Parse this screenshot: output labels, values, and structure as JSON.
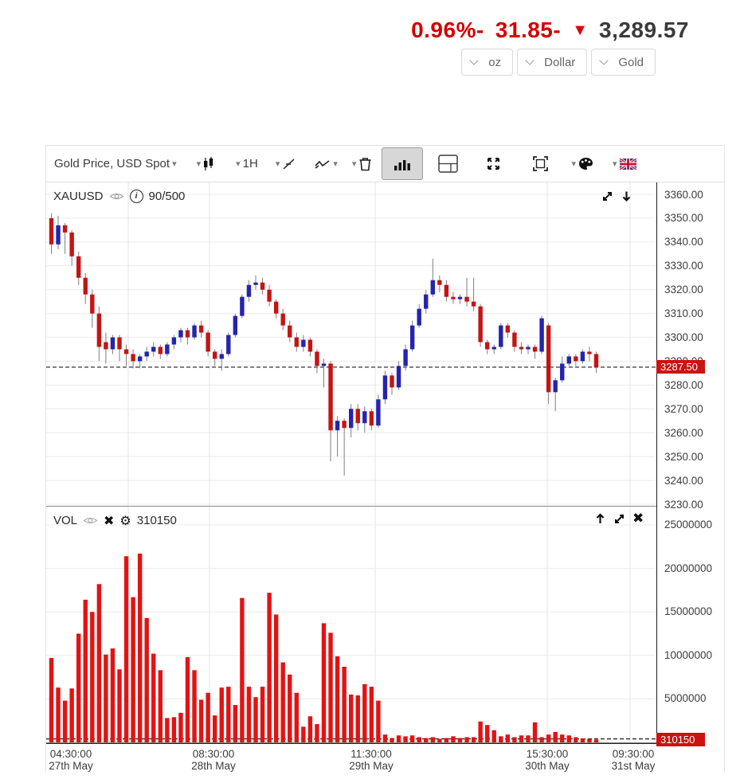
{
  "header": {
    "change_pct": "0.96%-",
    "change_abs": "31.85-",
    "price": "3,289.57",
    "units": [
      "oz",
      "Dollar",
      "Gold"
    ]
  },
  "toolbar": {
    "symbol": "Gold Price, USD Spot",
    "timeframe": "1H"
  },
  "price_pane": {
    "symbol": "XAUUSD",
    "bars_info": "90/500",
    "current": "3287.50"
  },
  "volume_pane": {
    "label": "VOL",
    "value": "310150",
    "current": "310150"
  },
  "chart_data": {
    "type": "candlestick_with_volume",
    "symbol": "XAUUSD",
    "timeframe": "1H",
    "colors": {
      "up": "#2424ad",
      "down": "#c41414",
      "wick": "#7f7f7f",
      "volume": "#e21313",
      "badge": "#cc1212",
      "grid": "#ececec",
      "session_grid": "#e4e4e4",
      "dashed": "#1c1c1c"
    },
    "price_axis": {
      "min": 3230,
      "max": 3360,
      "tick_step": 10,
      "current": 3287.5,
      "ticks": [
        3360,
        3350,
        3340,
        3330,
        3320,
        3310,
        3300,
        3290,
        3280,
        3270,
        3260,
        3250,
        3240,
        3230
      ]
    },
    "volume_axis": {
      "min": 0,
      "max": 25000000,
      "current": 310150,
      "ticks": [
        25000000,
        20000000,
        15000000,
        10000000,
        5000000,
        0
      ]
    },
    "x_ticks": [
      {
        "time": "04:30:00",
        "date": "27th May",
        "x": 31
      },
      {
        "time": "08:30:00",
        "date": "28th May",
        "x": 210
      },
      {
        "time": "11:30:00",
        "date": "29th May",
        "x": 408
      },
      {
        "time": "15:30:00",
        "date": "30th May",
        "x": 629
      },
      {
        "time": "09:30:00",
        "date": "31st May",
        "x": 737
      }
    ],
    "session_gridlines_x": [
      103,
      205,
      413,
      629,
      733
    ],
    "candles": [
      [
        3350,
        3352,
        3335,
        3339
      ],
      [
        3339,
        3351,
        3337,
        3347
      ],
      [
        3347,
        3348,
        3335,
        3344
      ],
      [
        3344,
        3345,
        3330,
        3334
      ],
      [
        3334,
        3336,
        3322,
        3325
      ],
      [
        3325,
        3327,
        3314,
        3318
      ],
      [
        3318,
        3320,
        3304,
        3310
      ],
      [
        3310,
        3313,
        3290,
        3296
      ],
      [
        3298,
        3302,
        3289,
        3295
      ],
      [
        3295,
        3301,
        3293,
        3300
      ],
      [
        3300,
        3301,
        3290,
        3295
      ],
      [
        3295,
        3297,
        3288,
        3293
      ],
      [
        3293,
        3295,
        3287,
        3290
      ],
      [
        3290,
        3293,
        3287,
        3292
      ],
      [
        3292,
        3296,
        3290,
        3294
      ],
      [
        3294,
        3298,
        3292,
        3296
      ],
      [
        3296,
        3297,
        3291,
        3293
      ],
      [
        3293,
        3298,
        3292,
        3297
      ],
      [
        3297,
        3301,
        3295,
        3300
      ],
      [
        3300,
        3304,
        3298,
        3303
      ],
      [
        3303,
        3304,
        3297,
        3300
      ],
      [
        3300,
        3306,
        3299,
        3305
      ],
      [
        3305,
        3307,
        3300,
        3302
      ],
      [
        3302,
        3303,
        3292,
        3294
      ],
      [
        3294,
        3295,
        3288,
        3291
      ],
      [
        3291,
        3295,
        3286,
        3293
      ],
      [
        3293,
        3302,
        3292,
        3301
      ],
      [
        3301,
        3310,
        3300,
        3309
      ],
      [
        3309,
        3318,
        3308,
        3317
      ],
      [
        3317,
        3324,
        3315,
        3322
      ],
      [
        3322,
        3326,
        3320,
        3323
      ],
      [
        3323,
        3325,
        3318,
        3320
      ],
      [
        3320,
        3322,
        3313,
        3315
      ],
      [
        3315,
        3316,
        3308,
        3310
      ],
      [
        3310,
        3312,
        3303,
        3305
      ],
      [
        3305,
        3307,
        3298,
        3300
      ],
      [
        3300,
        3302,
        3294,
        3296
      ],
      [
        3296,
        3301,
        3294,
        3299
      ],
      [
        3299,
        3300,
        3292,
        3294
      ],
      [
        3294,
        3295,
        3285,
        3288
      ],
      [
        3288,
        3291,
        3279,
        3289
      ],
      [
        3289,
        3290,
        3248,
        3261
      ],
      [
        3261,
        3267,
        3250,
        3265
      ],
      [
        3265,
        3266,
        3242,
        3262
      ],
      [
        3262,
        3272,
        3258,
        3270
      ],
      [
        3270,
        3272,
        3261,
        3264
      ],
      [
        3264,
        3271,
        3260,
        3269
      ],
      [
        3269,
        3270,
        3261,
        3263
      ],
      [
        3263,
        3276,
        3262,
        3274
      ],
      [
        3274,
        3286,
        3272,
        3284
      ],
      [
        3284,
        3285,
        3276,
        3279
      ],
      [
        3279,
        3290,
        3278,
        3288
      ],
      [
        3288,
        3297,
        3286,
        3295
      ],
      [
        3295,
        3307,
        3294,
        3305
      ],
      [
        3305,
        3314,
        3304,
        3312
      ],
      [
        3312,
        3320,
        3310,
        3318
      ],
      [
        3318,
        3333,
        3317,
        3324
      ],
      [
        3324,
        3326,
        3319,
        3322
      ],
      [
        3322,
        3324,
        3315,
        3317
      ],
      [
        3317,
        3319,
        3314,
        3316
      ],
      [
        3316,
        3318,
        3314,
        3317
      ],
      [
        3317,
        3325,
        3313,
        3315
      ],
      [
        3315,
        3325,
        3311,
        3313
      ],
      [
        3313,
        3314,
        3296,
        3298
      ],
      [
        3298,
        3299,
        3293,
        3295
      ],
      [
        3295,
        3297,
        3293,
        3296
      ],
      [
        3296,
        3306,
        3295,
        3305
      ],
      [
        3305,
        3306,
        3300,
        3302
      ],
      [
        3302,
        3303,
        3294,
        3296
      ],
      [
        3296,
        3298,
        3293,
        3295
      ],
      [
        3295,
        3297,
        3293,
        3296
      ],
      [
        3296,
        3297,
        3291,
        3294
      ],
      [
        3294,
        3309,
        3293,
        3308
      ],
      [
        3305,
        3306,
        3272,
        3277
      ],
      [
        3277,
        3283,
        3269,
        3282
      ],
      [
        3282,
        3292,
        3281,
        3289
      ],
      [
        3289,
        3293,
        3288,
        3292
      ],
      [
        3292,
        3293,
        3288,
        3290
      ],
      [
        3290,
        3295,
        3289,
        3294
      ],
      [
        3294,
        3296,
        3290,
        3293
      ],
      [
        3293,
        3294,
        3285,
        3287.5
      ]
    ],
    "volumes": [
      9700000,
      6300000,
      4800000,
      6200000,
      12500000,
      16400000,
      15000000,
      18200000,
      10100000,
      10800000,
      8400000,
      21400000,
      16700000,
      21700000,
      14300000,
      10200000,
      8300000,
      2800000,
      2900000,
      3400000,
      9800000,
      8300000,
      4900000,
      5700000,
      3100000,
      6300000,
      6400000,
      4300000,
      16600000,
      6400000,
      5200000,
      6400000,
      17200000,
      14700000,
      9200000,
      7800000,
      5700000,
      1800000,
      3000000,
      2100000,
      13700000,
      12600000,
      9900000,
      8700000,
      5500000,
      5400000,
      6700000,
      6400000,
      4800000,
      900000,
      500000,
      800000,
      700000,
      800000,
      600000,
      500000,
      600000,
      400000,
      500000,
      700000,
      500000,
      600000,
      600000,
      2400000,
      2000000,
      1400000,
      700000,
      900000,
      600000,
      800000,
      800000,
      2300000,
      600000,
      900000,
      1200000,
      900000,
      800000,
      600000,
      450000,
      400000,
      310150
    ]
  }
}
